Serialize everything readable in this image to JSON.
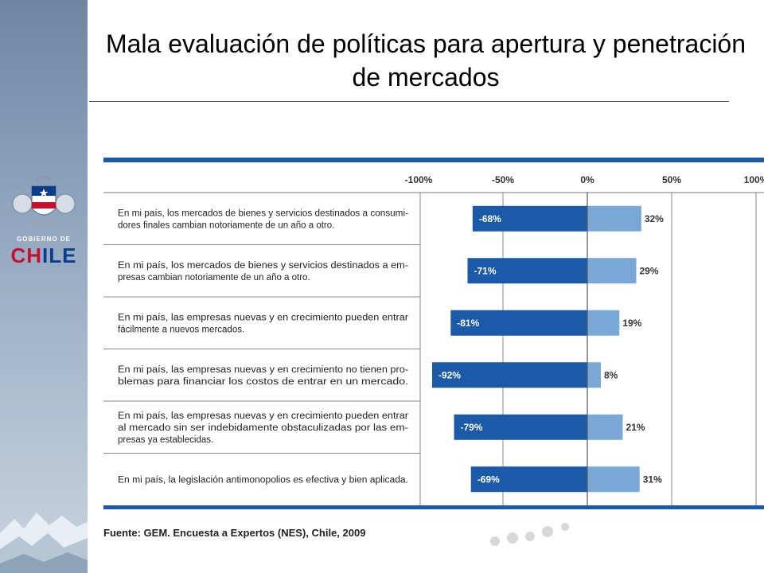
{
  "slide": {
    "title": "Mala evaluación de políticas para apertura y penetración de mercados",
    "source": "Fuente: GEM. Encuesta a Expertos (NES), Chile, 2009"
  },
  "logo": {
    "small_text": "GOBIERNO DE",
    "big_text_part1": "CH",
    "big_text_part2": "ILE"
  },
  "colors": {
    "negative_bar": "#1a5aa8",
    "positive_bar": "#7aa8d6",
    "frame_blue": "#1a5aa8"
  },
  "chart_data": {
    "type": "bar",
    "orientation": "horizontal-diverging",
    "xlim": [
      -100,
      100
    ],
    "x_ticks": [
      "-100%",
      "-50%",
      "0%",
      "50%",
      "100%"
    ],
    "grid": true,
    "categories": [
      [
        "En mi país, los mercados de bienes y servicios destinados a consumi-",
        "dores finales cambian notoriamente de un año a otro."
      ],
      [
        "En mi país, los mercados de bienes y servicios destinados a em-",
        "presas cambian notoriamente de un año a otro."
      ],
      [
        "En mi país, las empresas nuevas y en crecimiento pueden entrar",
        "fácilmente a nuevos mercados."
      ],
      [
        "En mi país, las empresas nuevas y en crecimiento no tienen pro-",
        "blemas para financiar los costos de entrar en un mercado."
      ],
      [
        "En mi país, las empresas nuevas y en crecimiento pueden entrar",
        "al mercado sin ser indebidamente obstaculizadas por las em-",
        "presas ya establecidas."
      ],
      [
        "En mi país, la legislación antimonopolios es efectiva y bien aplicada."
      ]
    ],
    "series": [
      {
        "values": [
          -68,
          -71,
          -81,
          -92,
          -79,
          -69
        ],
        "labels": [
          "-68%",
          "-71%",
          "-81%",
          "-92%",
          "-79%",
          "-69%"
        ]
      },
      {
        "values": [
          32,
          29,
          19,
          8,
          21,
          31
        ],
        "labels": [
          "32%",
          "29%",
          "19%",
          "8%",
          "21%",
          "31%"
        ]
      }
    ]
  }
}
